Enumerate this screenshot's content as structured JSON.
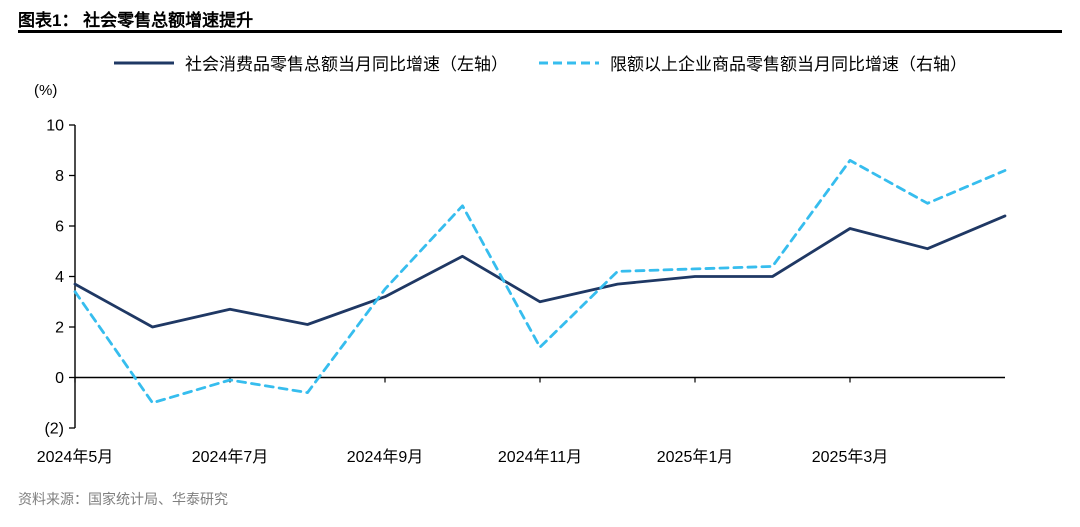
{
  "header": {
    "title": "图表1： 社会零售总额增速提升"
  },
  "legend": [
    {
      "label": "社会消费品零售总额当月同比增速（左轴）",
      "style": "solid",
      "color": "#1F3864"
    },
    {
      "label": "限额以上企业商品零售额当月同比增速（右轴）",
      "style": "dashed",
      "color": "#36BDEE"
    }
  ],
  "chart_data": {
    "type": "line",
    "title": "社会零售总额增速提升",
    "xlabel": "",
    "ylabel": "(%)",
    "x": [
      "2024年5月",
      "2024年6月",
      "2024年7月",
      "2024年8月",
      "2024年9月",
      "2024年10月",
      "2024年11月",
      "2024年12月",
      "2025年1月",
      "2025年2月",
      "2025年3月",
      "2025年4月",
      "2025年5月"
    ],
    "x_tick_indices": [
      0,
      2,
      4,
      6,
      8,
      10
    ],
    "x_tick_labels": [
      "2024年5月",
      "2024年7月",
      "2024年9月",
      "2024年11月",
      "2025年1月",
      "2025年3月"
    ],
    "series": [
      {
        "id": "total-retail",
        "name": "社会消费品零售总额当月同比增速（左轴）",
        "axis": "left",
        "color": "#1F3864",
        "dash": "",
        "values": [
          3.7,
          2.0,
          2.7,
          2.1,
          3.2,
          4.8,
          3.0,
          3.7,
          4.0,
          4.0,
          5.9,
          5.1,
          6.4
        ]
      },
      {
        "id": "above-limit-retail",
        "name": "限额以上企业商品零售额当月同比增速（右轴）",
        "axis": "right",
        "color": "#36BDEE",
        "dash": "8 6",
        "values": [
          3.4,
          -1.0,
          -0.1,
          -0.6,
          3.5,
          6.8,
          1.2,
          4.2,
          4.3,
          4.4,
          8.6,
          6.9,
          8.2
        ]
      }
    ],
    "ylim": [
      -2,
      10
    ],
    "yticks": [
      10,
      8,
      6,
      4,
      2,
      0,
      -2
    ],
    "ytick_labels": [
      "10",
      "8",
      "6",
      "4",
      "2",
      "0",
      "(2)"
    ],
    "grid": false,
    "legend_position": "top",
    "axis_color": "#000000"
  },
  "footer": {
    "source": "资料来源：国家统计局、华泰研究"
  }
}
